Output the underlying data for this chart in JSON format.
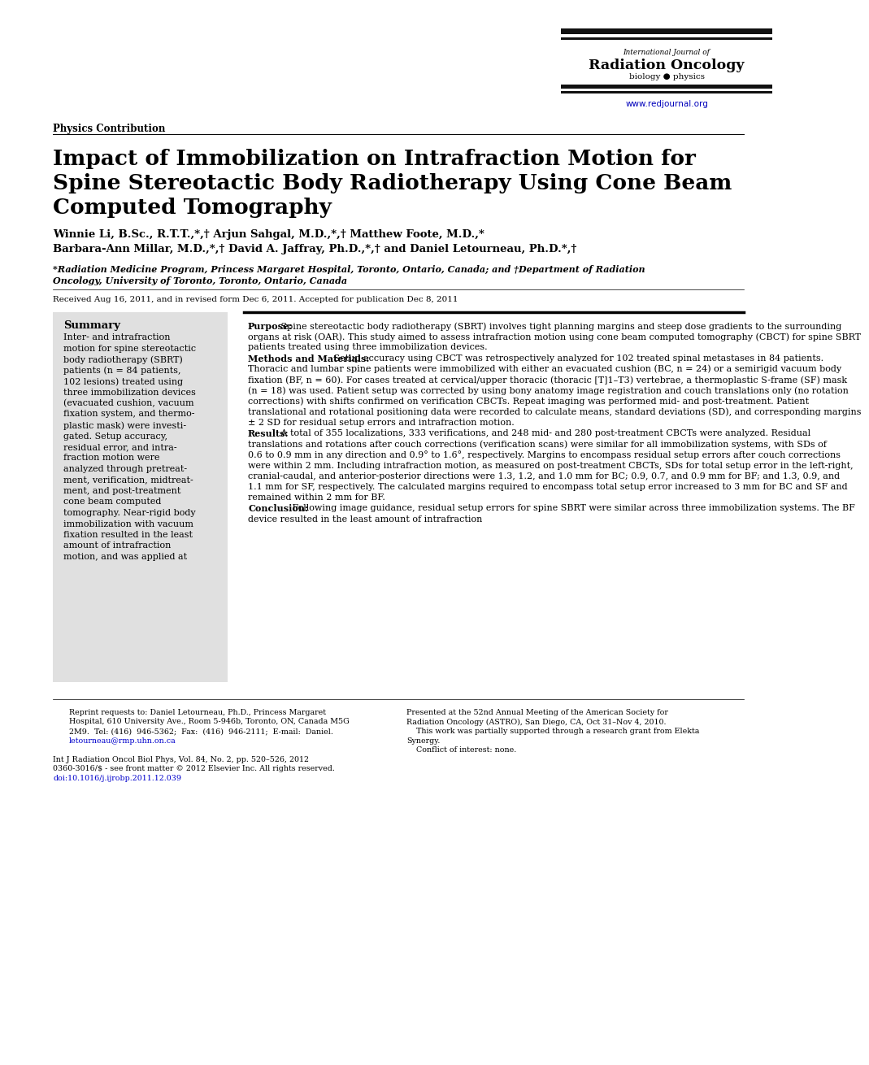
{
  "background_color": "#ffffff",
  "journal_name_line1": "International Journal of",
  "journal_name_line2": "Radiation Oncology",
  "journal_name_line3": "biology ● physics",
  "journal_url": "www.redjournal.org",
  "section_label": "Physics Contribution",
  "title_line1": "Impact of Immobilization on Intrafraction Motion for",
  "title_line2": "Spine Stereotactic Body Radiotherapy Using Cone Beam",
  "title_line3": "Computed Tomography",
  "author_line1": "Winnie Li, B.Sc., R.T.T.,*,† Arjun Sahgal, M.D.,*,† Matthew Foote, M.D.,*",
  "author_line2": "Barbara-Ann Millar, M.D.,*,† David A. Jaffray, Ph.D.,*,† and Daniel Letourneau, Ph.D.*,†",
  "affil_line1": "*Radiation Medicine Program, Princess Margaret Hospital, Toronto, Ontario, Canada; and †Department of Radiation",
  "affil_line2": "Oncology, University of Toronto, Toronto, Ontario, Canada",
  "received": "Received Aug 16, 2011, and in revised form Dec 6, 2011. Accepted for publication Dec 8, 2011",
  "summary_title": "Summary",
  "summary_lines": [
    "Inter- and intrafraction",
    "motion for spine stereotactic",
    "body radiotherapy (SBRT)",
    "patients (n = 84 patients,",
    "102 lesions) treated using",
    "three immobilization devices",
    "(evacuated cushion, vacuum",
    "fixation system, and thermo-",
    "plastic mask) were investi-",
    "gated. Setup accuracy,",
    "residual error, and intra-",
    "fraction motion were",
    "analyzed through pretreat-",
    "ment, verification, midtreat-",
    "ment, and post-treatment",
    "cone beam computed",
    "tomography. Near-rigid body",
    "immobilization with vacuum",
    "fixation resulted in the least",
    "amount of intrafraction",
    "motion, and was applied at"
  ],
  "purpose_bold": "Purpose:",
  "purpose_text": " Spine stereotactic body radiotherapy (SBRT) involves tight planning margins and steep dose gradients to the surrounding organs at risk (OAR). This study aimed to assess intrafraction motion using cone beam computed tomography (CBCT) for spine SBRT patients treated using three immobilization devices.",
  "methods_bold": "Methods and Materials:",
  "methods_text": " Setup accuracy using CBCT was retrospectively analyzed for 102 treated spinal metastases in 84 patients. Thoracic and lumbar spine patients were immobilized with either an evacuated cushion (BC, n = 24) or a semirigid vacuum body fixation (BF, n = 60). For cases treated at cervical/upper thoracic (thoracic [T]1–T3) vertebrae, a thermoplastic S-frame (SF) mask (n = 18) was used. Patient setup was corrected by using bony anatomy image registration and couch translations only (no rotation corrections) with shifts confirmed on verification CBCTs. Repeat imaging was performed mid- and post-treatment. Patient translational and rotational positioning data were recorded to calculate means, standard deviations (SD), and corresponding margins ± 2 SD for residual setup errors and intrafraction motion.",
  "results_bold": "Results:",
  "results_text": " A total of 355 localizations, 333 verifications, and 248 mid- and 280 post-treatment CBCTs were analyzed. Residual translations and rotations after couch corrections (verification scans) were similar for all immobilization systems, with SDs of 0.6 to 0.9 mm in any direction and 0.9° to 1.6°, respectively. Margins to encompass residual setup errors after couch corrections were within 2 mm. Including intrafraction motion, as measured on post-treatment CBCTs, SDs for total setup error in the left-right, cranial-caudal, and anterior-posterior directions were 1.3, 1.2, and 1.0 mm for BC; 0.9, 0.7, and 0.9 mm for BF; and 1.3, 0.9, and 1.1 mm for SF, respectively. The calculated margins required to encompass total setup error increased to 3 mm for BC and SF and remained within 2 mm for BF.",
  "conclusion_bold": "Conclusion:",
  "conclusion_text": " Following image guidance, residual setup errors for spine SBRT were similar across three immobilization systems. The BF device resulted in the least amount of intrafraction",
  "footer_reprint_lines": [
    "Reprint requests to: Daniel Letourneau, Ph.D., Princess Margaret",
    "Hospital, 610 University Ave., Room 5-946b, Toronto, ON, Canada M5G",
    "2M9.  Tel: (416)  946-5362;  Fax:  (416)  946-2111;  E-mail:  Daniel.",
    "letourneau@rmp.uhn.on.ca"
  ],
  "footer_right_lines": [
    "Presented at the 52nd Annual Meeting of the American Society for",
    "Radiation Oncology (ASTRO), San Diego, CA, Oct 31–Nov 4, 2010.",
    "    This work was partially supported through a research grant from Elekta",
    "Synergy.",
    "    Conflict of interest: none."
  ],
  "journal_info_lines": [
    "Int J Radiation Oncol Biol Phys, Vol. 84, No. 2, pp. 520–526, 2012",
    "0360-3016/$ - see front matter © 2012 Elsevier Inc. All rights reserved.",
    "doi:10.1016/j.ijrobp.2011.12.039"
  ],
  "doi_color": "#0000cc"
}
